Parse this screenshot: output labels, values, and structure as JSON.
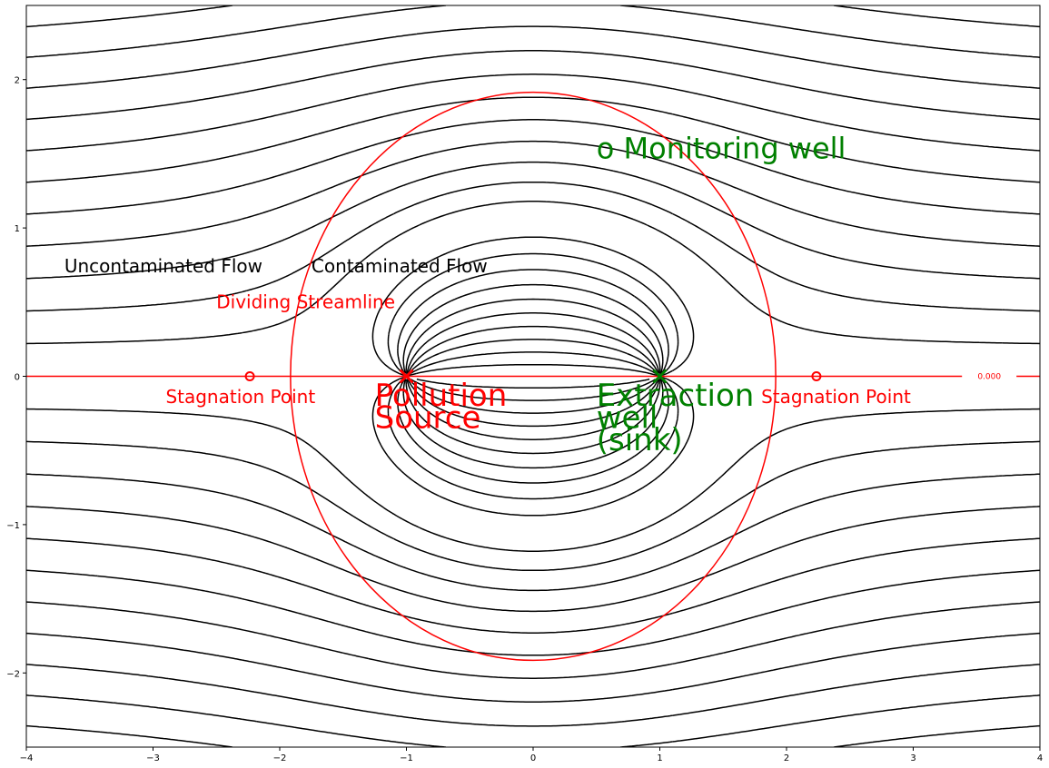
{
  "chart_data": {
    "type": "contour",
    "title": "",
    "xlabel": "",
    "ylabel": "",
    "xlim": [
      -4,
      4
    ],
    "ylim": [
      -2.5,
      2.5
    ],
    "x_ticks": [
      -4,
      -3,
      -2,
      -1,
      0,
      1,
      2,
      3,
      4
    ],
    "y_ticks": [
      -2,
      -1,
      0,
      1,
      2
    ],
    "x_tick_labels": [
      "−4",
      "−3",
      "−2",
      "−1",
      "0",
      "1",
      "2",
      "3",
      "4"
    ],
    "y_tick_labels": [
      "−2",
      "−1",
      "0",
      "1",
      "2"
    ],
    "grid": false,
    "source": {
      "x": -1,
      "y": 0,
      "marker": "x",
      "color": "#ff0000"
    },
    "sink": {
      "x": 1,
      "y": 0,
      "marker": "x",
      "color": "#008000"
    },
    "stagnation_points": [
      {
        "x": -2.236,
        "y": 0
      },
      {
        "x": 2.236,
        "y": 0
      }
    ],
    "dividing_streamline": {
      "center": [
        0,
        0
      ],
      "radius": 1.915,
      "color": "#ff0000",
      "label": "0.000"
    },
    "streamline_style": {
      "positive": "solid",
      "negative": "dashed",
      "color": "#000000"
    },
    "annotations": [
      {
        "key": "uncontaminated",
        "text": "Uncontaminated Flow",
        "x": -3.7,
        "y": 0.7,
        "color": "#000000",
        "size": 20
      },
      {
        "key": "contaminated",
        "text": "Contaminated Flow",
        "x": -1.75,
        "y": 0.7,
        "color": "#000000",
        "size": 20
      },
      {
        "key": "dividing",
        "text": "Dividing Streamline",
        "x": -2.5,
        "y": 0.46,
        "color": "#ff0000",
        "size": 20
      },
      {
        "key": "stag-left",
        "text": "Stagnation Point",
        "x": -2.9,
        "y": -0.18,
        "color": "#ff0000",
        "size": 20
      },
      {
        "key": "stag-right",
        "text": "Stagnation Point",
        "x": 1.8,
        "y": -0.18,
        "color": "#ff0000",
        "size": 20
      },
      {
        "key": "monitoring",
        "text": "o Monitoring well",
        "x": 0.5,
        "y": 1.47,
        "color": "#008000",
        "size": 32
      },
      {
        "key": "pollution-1",
        "text": "Pollution",
        "x": -1.25,
        "y": -0.2,
        "color": "#ff0000",
        "size": 34
      },
      {
        "key": "pollution-2",
        "text": "Source",
        "x": -1.25,
        "y": -0.35,
        "color": "#ff0000",
        "size": 34
      },
      {
        "key": "extraction-1",
        "text": "Extraction",
        "x": 0.5,
        "y": -0.2,
        "color": "#008000",
        "size": 34
      },
      {
        "key": "extraction-2",
        "text": "well",
        "x": 0.5,
        "y": -0.35,
        "color": "#008000",
        "size": 34
      },
      {
        "key": "extraction-3",
        "text": "(sink)",
        "x": 0.5,
        "y": -0.5,
        "color": "#008000",
        "size": 34
      }
    ]
  }
}
